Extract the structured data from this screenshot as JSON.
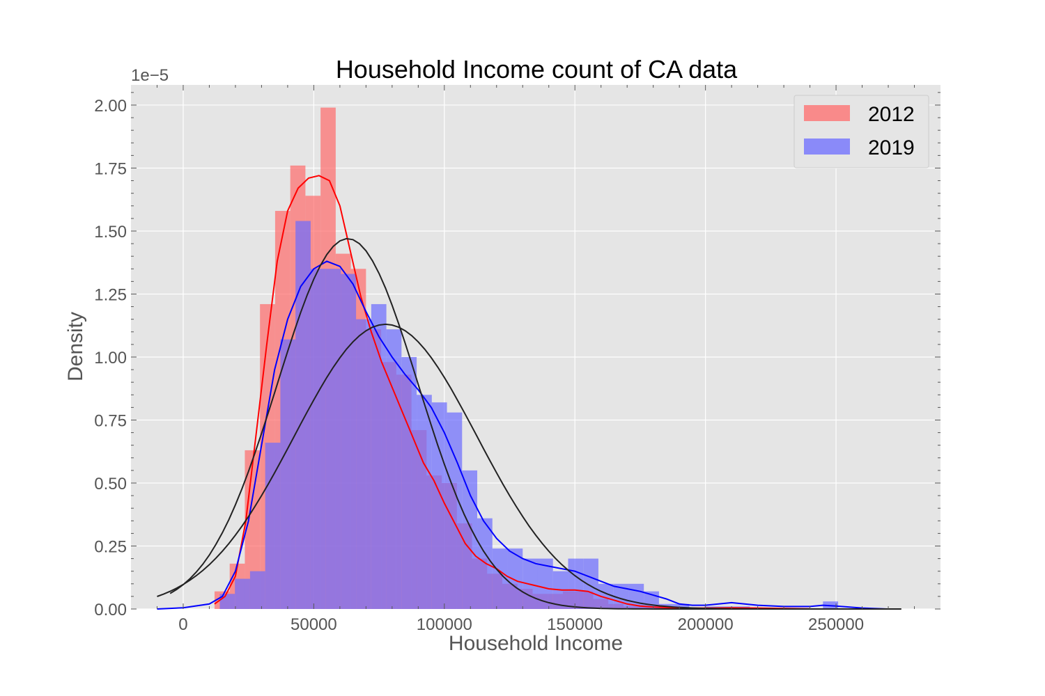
{
  "chart_data": {
    "type": "bar",
    "title": "Household Income count of CA  data",
    "xlabel": "Household Income",
    "ylabel": "Density",
    "y_offset_label": "1e−5",
    "y_scale": 1e-05,
    "xlim": [
      -20000,
      290000
    ],
    "ylim": [
      0,
      2.08
    ],
    "x_ticks": [
      0,
      50000,
      100000,
      150000,
      200000,
      250000
    ],
    "x_tick_labels": [
      "0",
      "50000",
      "100000",
      "150000",
      "200000",
      "250000"
    ],
    "y_ticks": [
      0,
      0.25,
      0.5,
      0.75,
      1.0,
      1.25,
      1.5,
      1.75,
      2.0
    ],
    "y_tick_labels": [
      "0.00",
      "0.25",
      "0.50",
      "0.75",
      "1.00",
      "1.25",
      "1.50",
      "1.75",
      "2.00"
    ],
    "grid": true,
    "legend_position": "top-right",
    "series": [
      {
        "name": "2012",
        "color": "#ff6b6b",
        "kde_color": "#ff0000",
        "fit_color": "#222222",
        "bin_width": 5800,
        "bins": [
          [
            12000,
            0.07
          ],
          [
            17800,
            0.18
          ],
          [
            23600,
            0.63
          ],
          [
            29400,
            1.21
          ],
          [
            35200,
            1.58
          ],
          [
            41000,
            1.76
          ],
          [
            46800,
            1.64
          ],
          [
            52600,
            1.99
          ],
          [
            58400,
            1.41
          ],
          [
            64200,
            1.35
          ],
          [
            70000,
            1.11
          ],
          [
            75800,
            0.98
          ],
          [
            81600,
            0.93
          ],
          [
            87400,
            0.71
          ],
          [
            93200,
            0.53
          ],
          [
            99000,
            0.5
          ],
          [
            104800,
            0.34
          ],
          [
            110600,
            0.2
          ],
          [
            116400,
            0.14
          ],
          [
            122200,
            0.1
          ],
          [
            128000,
            0.08
          ],
          [
            133800,
            0.06
          ],
          [
            139600,
            0.06
          ],
          [
            145400,
            0.07
          ],
          [
            151200,
            0.07
          ],
          [
            157000,
            0.04
          ],
          [
            162800,
            0.02
          ],
          [
            168600,
            0.01
          ],
          [
            174400,
            0.01
          ],
          [
            180200,
            0.005
          ],
          [
            203000,
            0.005
          ],
          [
            209000,
            0.005
          ],
          [
            215000,
            0.005
          ]
        ],
        "kde": [
          [
            12000,
            0.02
          ],
          [
            16000,
            0.05
          ],
          [
            20000,
            0.13
          ],
          [
            24000,
            0.35
          ],
          [
            28000,
            0.7
          ],
          [
            32000,
            1.05
          ],
          [
            36000,
            1.38
          ],
          [
            40000,
            1.58
          ],
          [
            44000,
            1.67
          ],
          [
            48000,
            1.71
          ],
          [
            52000,
            1.72
          ],
          [
            56000,
            1.7
          ],
          [
            60000,
            1.6
          ],
          [
            64000,
            1.42
          ],
          [
            68000,
            1.24
          ],
          [
            72000,
            1.1
          ],
          [
            76000,
            0.98
          ],
          [
            80000,
            0.88
          ],
          [
            84000,
            0.78
          ],
          [
            88000,
            0.68
          ],
          [
            92000,
            0.58
          ],
          [
            96000,
            0.51
          ],
          [
            100000,
            0.42
          ],
          [
            104000,
            0.34
          ],
          [
            108000,
            0.26
          ],
          [
            112000,
            0.21
          ],
          [
            116000,
            0.18
          ],
          [
            120000,
            0.16
          ],
          [
            124000,
            0.13
          ],
          [
            128000,
            0.11
          ],
          [
            132000,
            0.1
          ],
          [
            136000,
            0.09
          ],
          [
            140000,
            0.08
          ],
          [
            145000,
            0.075
          ],
          [
            150000,
            0.075
          ],
          [
            155000,
            0.07
          ],
          [
            160000,
            0.05
          ],
          [
            165000,
            0.035
          ],
          [
            170000,
            0.02
          ],
          [
            175000,
            0.012
          ],
          [
            180000,
            0.008
          ],
          [
            190000,
            0.004
          ],
          [
            200000,
            0.004
          ],
          [
            210000,
            0.005
          ],
          [
            220000,
            0.004
          ],
          [
            230000,
            0.002
          ],
          [
            240000,
            0.0005
          ]
        ],
        "normal_fit": {
          "mean": 63000,
          "sd": 27000,
          "peak": 1.47,
          "x_range": [
            -5000,
            250000
          ]
        }
      },
      {
        "name": "2019",
        "color": "#6b6bff",
        "kde_color": "#0000ff",
        "fit_color": "#222222",
        "bin_width": 5800,
        "bins": [
          [
            14000,
            0.06
          ],
          [
            19800,
            0.12
          ],
          [
            25600,
            0.15
          ],
          [
            31400,
            0.66
          ],
          [
            37200,
            1.07
          ],
          [
            43000,
            1.54
          ],
          [
            48800,
            1.35
          ],
          [
            54600,
            1.35
          ],
          [
            60400,
            1.33
          ],
          [
            66200,
            1.15
          ],
          [
            72000,
            1.21
          ],
          [
            77800,
            1.11
          ],
          [
            83600,
            1.0
          ],
          [
            89400,
            0.85
          ],
          [
            95200,
            0.82
          ],
          [
            101000,
            0.78
          ],
          [
            106800,
            0.55
          ],
          [
            112600,
            0.36
          ],
          [
            118400,
            0.24
          ],
          [
            124200,
            0.24
          ],
          [
            130000,
            0.2
          ],
          [
            135800,
            0.2
          ],
          [
            141600,
            0.15
          ],
          [
            147400,
            0.2
          ],
          [
            153200,
            0.2
          ],
          [
            159000,
            0.1
          ],
          [
            164800,
            0.1
          ],
          [
            170600,
            0.1
          ],
          [
            176400,
            0.07
          ],
          [
            182200,
            0.02
          ],
          [
            188000,
            0.02
          ],
          [
            199600,
            0.01
          ],
          [
            205400,
            0.01
          ],
          [
            211200,
            0.01
          ],
          [
            245000,
            0.03
          ]
        ],
        "kde": [
          [
            -10000,
            0.0
          ],
          [
            0,
            0.005
          ],
          [
            10000,
            0.02
          ],
          [
            15000,
            0.05
          ],
          [
            20000,
            0.15
          ],
          [
            25000,
            0.35
          ],
          [
            30000,
            0.65
          ],
          [
            35000,
            0.95
          ],
          [
            40000,
            1.15
          ],
          [
            45000,
            1.28
          ],
          [
            50000,
            1.35
          ],
          [
            55000,
            1.38
          ],
          [
            60000,
            1.36
          ],
          [
            65000,
            1.29
          ],
          [
            70000,
            1.18
          ],
          [
            75000,
            1.08
          ],
          [
            80000,
            1.0
          ],
          [
            85000,
            0.93
          ],
          [
            90000,
            0.87
          ],
          [
            95000,
            0.8
          ],
          [
            100000,
            0.7
          ],
          [
            105000,
            0.58
          ],
          [
            110000,
            0.45
          ],
          [
            115000,
            0.35
          ],
          [
            120000,
            0.28
          ],
          [
            125000,
            0.23
          ],
          [
            130000,
            0.2
          ],
          [
            135000,
            0.18
          ],
          [
            140000,
            0.17
          ],
          [
            145000,
            0.16
          ],
          [
            150000,
            0.15
          ],
          [
            155000,
            0.13
          ],
          [
            160000,
            0.11
          ],
          [
            165000,
            0.09
          ],
          [
            170000,
            0.08
          ],
          [
            175000,
            0.07
          ],
          [
            180000,
            0.055
          ],
          [
            185000,
            0.04
          ],
          [
            190000,
            0.02
          ],
          [
            195000,
            0.015
          ],
          [
            200000,
            0.015
          ],
          [
            205000,
            0.02
          ],
          [
            210000,
            0.025
          ],
          [
            215000,
            0.02
          ],
          [
            220000,
            0.015
          ],
          [
            230000,
            0.01
          ],
          [
            240000,
            0.01
          ],
          [
            245000,
            0.015
          ],
          [
            250000,
            0.012
          ],
          [
            260000,
            0.004
          ],
          [
            270000,
            0.0
          ]
        ],
        "normal_fit": {
          "mean": 77500,
          "sd": 35000,
          "peak": 1.13,
          "x_range": [
            -10000,
            275000
          ]
        }
      }
    ]
  }
}
